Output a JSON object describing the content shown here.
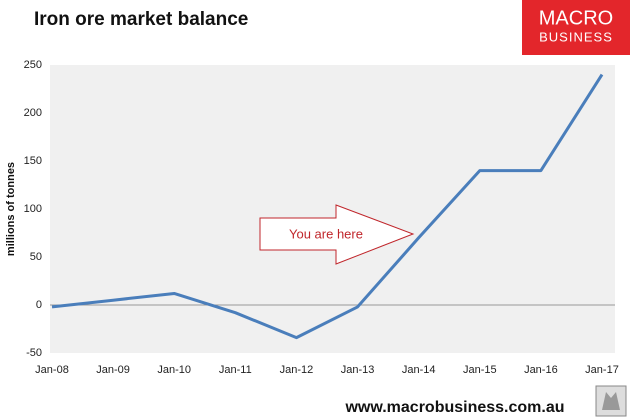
{
  "chart_data": {
    "type": "line",
    "title": "Iron ore market balance",
    "y_label": "millions of tonnes",
    "categories": [
      "Jan-08",
      "Jan-09",
      "Jan-10",
      "Jan-11",
      "Jan-12",
      "Jan-13",
      "Jan-14",
      "Jan-15",
      "Jan-16",
      "Jan-17"
    ],
    "values": [
      -2,
      5,
      12,
      -8,
      -34,
      -2,
      70,
      140,
      140,
      240
    ],
    "color": "#4a7ebb",
    "ylim": [
      -50,
      250
    ],
    "yticks": [
      -50,
      0,
      50,
      100,
      150,
      200,
      250
    ],
    "grid": false,
    "annotation": "You are here"
  },
  "logo": {
    "line1": "MACRO",
    "line2": "BUSINESS"
  },
  "footer": "www.macrobusiness.com.au"
}
